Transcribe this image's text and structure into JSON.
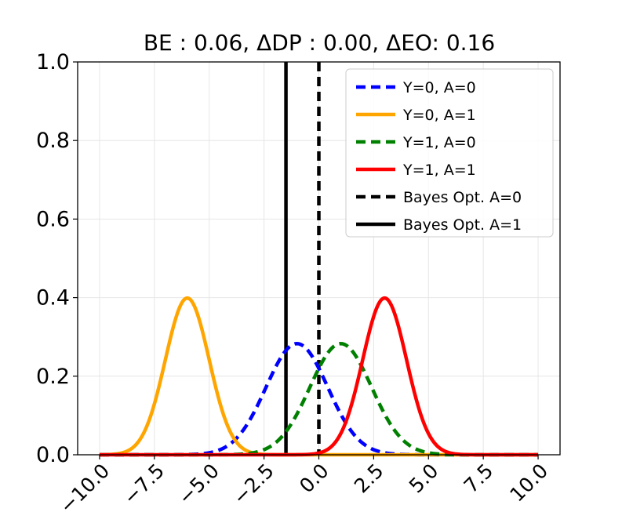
{
  "chart_data": {
    "type": "line",
    "title": "BE : 0.06, ΔDP : 0.00, ΔEO: 0.16",
    "xlabel": "",
    "ylabel": "",
    "xlim": [
      -11.0,
      11.0
    ],
    "ylim": [
      0.0,
      1.0
    ],
    "grid": true,
    "legend_position": "top-right",
    "xticks": [
      -10.0,
      -7.5,
      -5.0,
      -2.5,
      0.0,
      2.5,
      5.0,
      7.5,
      10.0
    ],
    "xtick_labels": [
      "−10.0",
      "−7.5",
      "−5.0",
      "−2.5",
      "0.0",
      "2.5",
      "5.0",
      "7.5",
      "10.0"
    ],
    "yticks": [
      0.0,
      0.2,
      0.4,
      0.6,
      0.8,
      1.0
    ],
    "ytick_labels": [
      "0.0",
      "0.2",
      "0.4",
      "0.6",
      "0.8",
      "1.0"
    ],
    "x_range": [
      -10.0,
      10.0
    ],
    "series": [
      {
        "name": "Y=0, A=0",
        "kind": "gaussian",
        "mean": -1.0,
        "std": 1.41,
        "color": "#0000ff",
        "dash": true
      },
      {
        "name": "Y=0, A=1",
        "kind": "gaussian",
        "mean": -6.0,
        "std": 1.0,
        "color": "#ffa500",
        "dash": false
      },
      {
        "name": "Y=1, A=0",
        "kind": "gaussian",
        "mean": 1.0,
        "std": 1.41,
        "color": "#008000",
        "dash": true
      },
      {
        "name": "Y=1, A=1",
        "kind": "gaussian",
        "mean": 3.0,
        "std": 1.0,
        "color": "#ff0000",
        "dash": false
      },
      {
        "name": "Bayes Opt. A=0",
        "kind": "vline",
        "x": 0.0,
        "color": "#000000",
        "dash": true
      },
      {
        "name": "Bayes Opt. A=1",
        "kind": "vline",
        "x": -1.5,
        "color": "#000000",
        "dash": false
      }
    ]
  }
}
